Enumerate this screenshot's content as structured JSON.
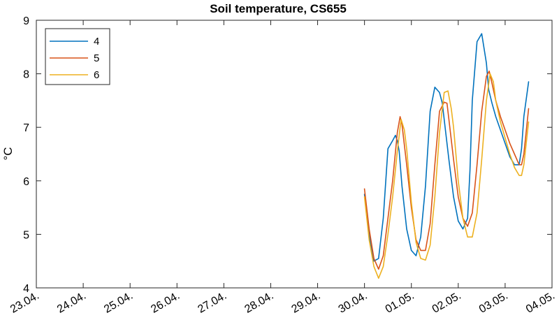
{
  "chart_data": {
    "type": "line",
    "title": "Soil temperature, CS655",
    "xlabel": "",
    "ylabel": "°C",
    "ylim": [
      4,
      9
    ],
    "yticks": [
      "4",
      "5",
      "6",
      "7",
      "8",
      "9"
    ],
    "xlim": [
      "23.04.",
      "04.05."
    ],
    "xticks": [
      "23.04.",
      "24.04.",
      "25.04.",
      "26.04.",
      "27.04.",
      "28.04.",
      "29.04.",
      "30.04.",
      "01.05.",
      "02.05.",
      "03.05.",
      "04.05."
    ],
    "grid": false,
    "legend": {
      "position": "top-left",
      "entries": [
        "4",
        "5",
        "6"
      ]
    },
    "series": [
      {
        "name": "4",
        "color": "#0072BD",
        "x": [
          7.0,
          7.1,
          7.2,
          7.3,
          7.4,
          7.5,
          7.6,
          7.66,
          7.7,
          7.74,
          7.8,
          7.9,
          8.0,
          8.1,
          8.2,
          8.3,
          8.4,
          8.5,
          8.6,
          8.66,
          8.72,
          8.8,
          8.9,
          9.0,
          9.1,
          9.2,
          9.25,
          9.3,
          9.4,
          9.5,
          9.6,
          9.65,
          9.72,
          9.8,
          9.9,
          10.0,
          10.1,
          10.2,
          10.3,
          10.35,
          10.4,
          10.5
        ],
        "y": [
          5.75,
          5.0,
          4.5,
          4.55,
          5.3,
          6.6,
          6.75,
          6.85,
          6.75,
          6.55,
          5.9,
          5.1,
          4.7,
          4.6,
          4.95,
          5.9,
          7.3,
          7.75,
          7.65,
          7.45,
          7.0,
          6.4,
          5.7,
          5.25,
          5.1,
          5.3,
          6.2,
          7.5,
          8.6,
          8.75,
          8.2,
          7.7,
          7.45,
          7.2,
          6.95,
          6.7,
          6.45,
          6.3,
          6.3,
          6.6,
          7.2,
          7.85
        ]
      },
      {
        "name": "5",
        "color": "#D95319",
        "x": [
          7.0,
          7.1,
          7.2,
          7.3,
          7.4,
          7.5,
          7.6,
          7.7,
          7.76,
          7.8,
          7.9,
          8.0,
          8.1,
          8.2,
          8.3,
          8.4,
          8.5,
          8.6,
          8.7,
          8.76,
          8.8,
          8.9,
          9.0,
          9.1,
          9.2,
          9.3,
          9.4,
          9.5,
          9.6,
          9.66,
          9.7,
          9.8,
          9.9,
          10.0,
          10.1,
          10.2,
          10.3,
          10.35,
          10.4,
          10.5
        ],
        "y": [
          5.85,
          5.1,
          4.55,
          4.35,
          4.6,
          5.3,
          6.0,
          6.9,
          7.2,
          7.05,
          6.3,
          5.5,
          4.9,
          4.7,
          4.7,
          5.2,
          6.3,
          7.3,
          7.47,
          7.45,
          7.15,
          6.4,
          5.7,
          5.3,
          5.15,
          5.4,
          6.3,
          7.3,
          7.95,
          8.05,
          7.9,
          7.5,
          7.2,
          6.95,
          6.7,
          6.5,
          6.3,
          6.3,
          6.5,
          7.35
        ]
      },
      {
        "name": "6",
        "color": "#EDB120",
        "x": [
          7.0,
          7.1,
          7.2,
          7.3,
          7.4,
          7.5,
          7.6,
          7.7,
          7.78,
          7.85,
          7.9,
          8.0,
          8.1,
          8.2,
          8.3,
          8.4,
          8.5,
          8.6,
          8.7,
          8.78,
          8.85,
          8.9,
          9.0,
          9.1,
          9.2,
          9.3,
          9.4,
          9.5,
          9.6,
          9.68,
          9.75,
          9.8,
          9.9,
          10.0,
          10.1,
          10.2,
          10.3,
          10.35,
          10.4,
          10.5
        ],
        "y": [
          5.7,
          4.9,
          4.4,
          4.18,
          4.4,
          5.0,
          5.7,
          6.55,
          7.15,
          6.95,
          6.6,
          5.6,
          4.85,
          4.55,
          4.52,
          4.8,
          5.7,
          6.9,
          7.65,
          7.68,
          7.35,
          7.0,
          6.0,
          5.3,
          4.95,
          4.95,
          5.4,
          6.4,
          7.5,
          8.0,
          7.85,
          7.5,
          7.1,
          6.8,
          6.5,
          6.25,
          6.1,
          6.1,
          6.3,
          7.1
        ]
      }
    ]
  }
}
